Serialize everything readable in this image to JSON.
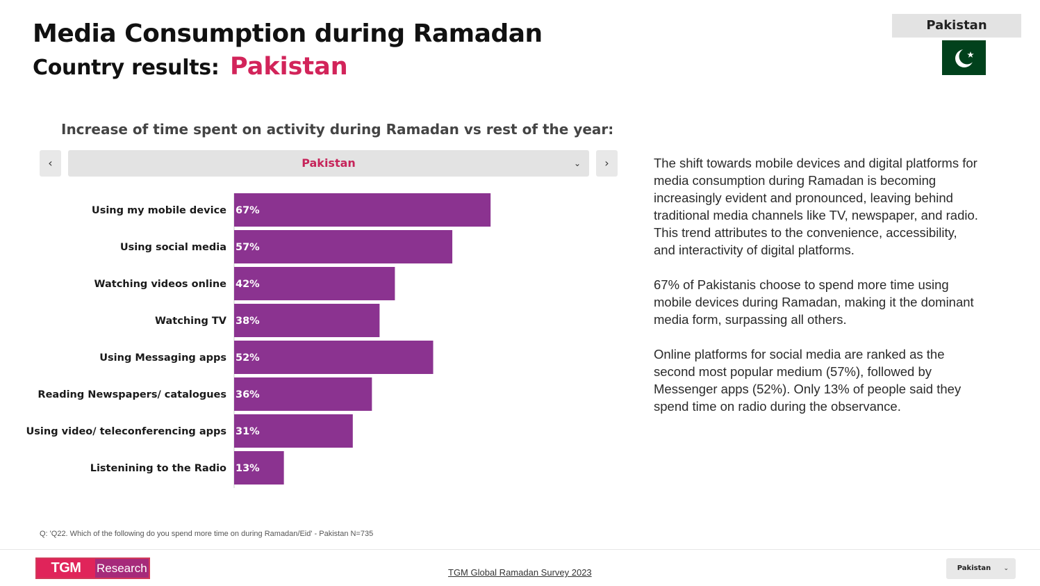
{
  "header": {
    "title": "Media Consumption during Ramadan",
    "subtitle_prefix": "Country results:",
    "country": "Pakistan"
  },
  "country_badge": {
    "label": "Pakistan",
    "flag_icon": "pakistan-flag-icon"
  },
  "chart_data": {
    "type": "bar",
    "orientation": "horizontal",
    "title": "Increase of time spent on activity during Ramadan vs rest of the year:",
    "categories": [
      "Using my mobile device",
      "Using social media",
      "Watching videos online",
      "Watching TV",
      "Using Messaging apps",
      "Reading Newspapers/ catalogues",
      "Using video/ teleconferencing apps",
      "Listenining to the Radio"
    ],
    "values": [
      67,
      57,
      42,
      38,
      52,
      36,
      31,
      13
    ],
    "value_labels": [
      "67%",
      "57%",
      "42%",
      "38%",
      "52%",
      "36%",
      "31%",
      "13%"
    ],
    "unit": "%",
    "bar_color": "#8b3390",
    "grid": false,
    "legend": "none"
  },
  "selector": {
    "prev_icon": "chevron-left-icon",
    "next_icon": "chevron-right-icon",
    "value": "Pakistan",
    "dropdown_icon": "chevron-down-icon"
  },
  "description": [
    "The shift towards mobile devices and digital platforms for media consumption during Ramadan is becoming increasingly evident and pronounced, leaving behind traditional media channels like TV, newspaper, and radio. This trend attributes to the convenience, accessibility, and interactivity of digital platforms.",
    "67% of Pakistanis choose to spend more time using mobile devices during Ramadan, making it the dominant media form, surpassing all others.",
    "Online platforms for social media are ranked as the second most popular medium (57%), followed by Messenger apps (52%). Only 13% of people said they spend time on radio during the observance."
  ],
  "footnote": "Q: 'Q22. Which of the following do you spend more time on during Ramadan/Eid' - Pakistan N=735",
  "footer": {
    "logo_left": "TGM",
    "logo_right": "Research",
    "survey_link": "TGM Global Ramadan Survey 2023",
    "country_select": "Pakistan"
  },
  "colors": {
    "accent": "#d2245a",
    "bar": "#8b3390",
    "flag_green": "#01411c"
  }
}
